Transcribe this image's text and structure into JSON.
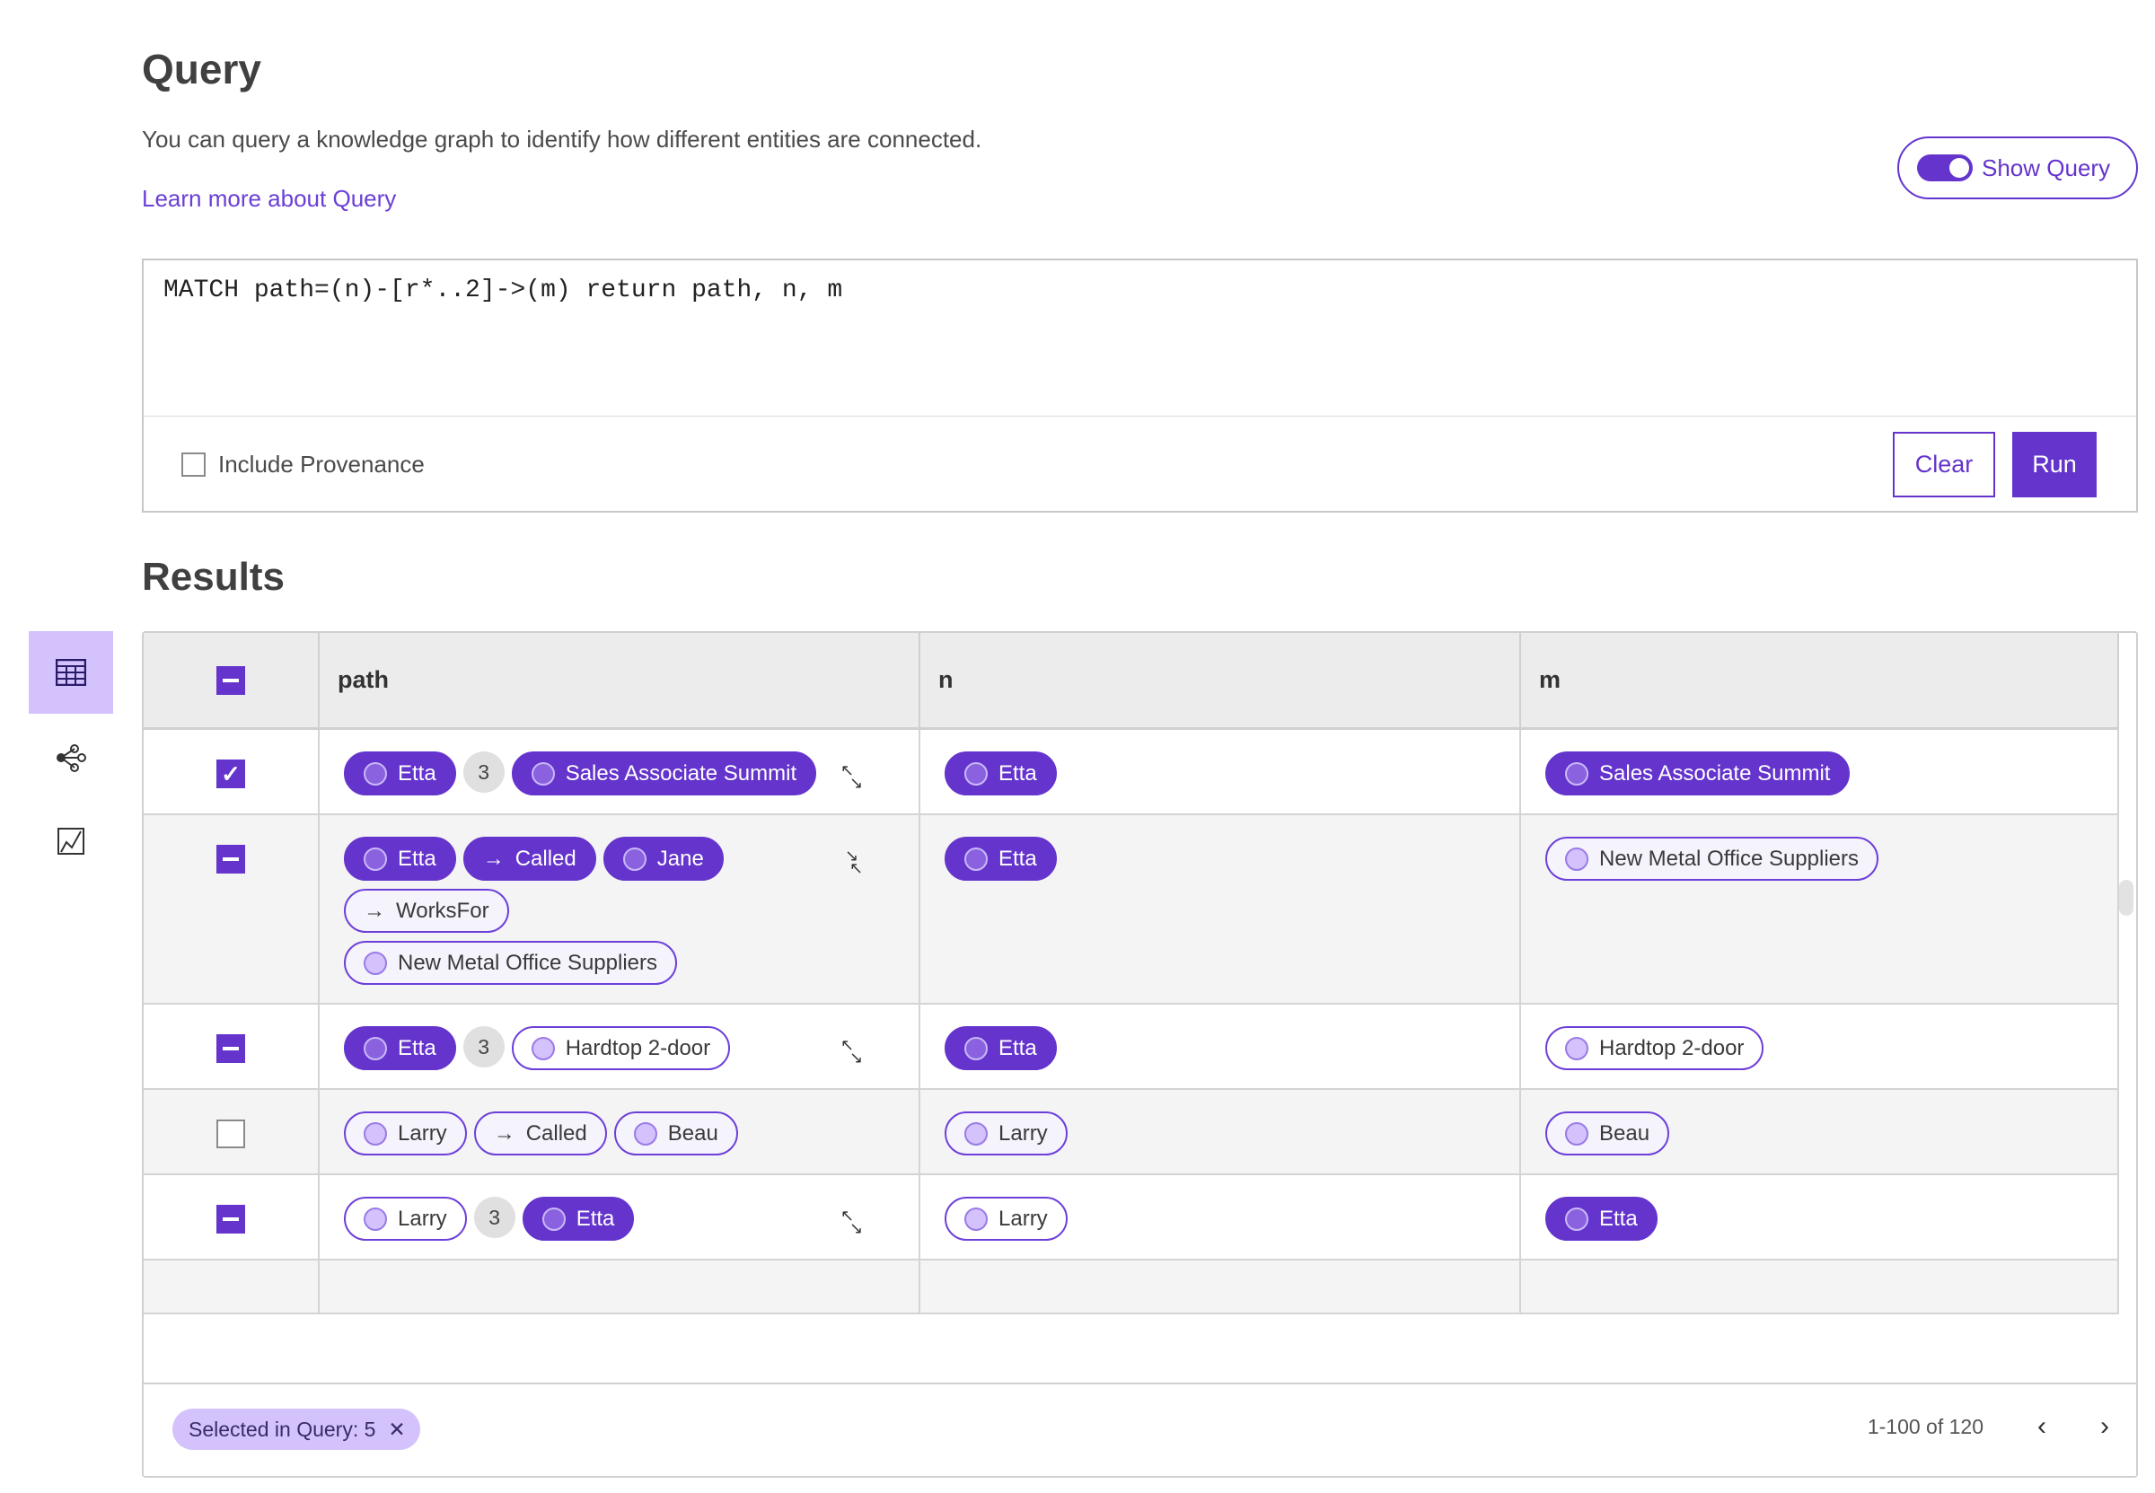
{
  "header": {
    "title": "Query",
    "description": "You can query a knowledge graph to identify how different entities are connected.",
    "learn_more": "Learn more about Query",
    "show_query_label": "Show Query",
    "show_query_on": true
  },
  "query": {
    "text": "MATCH path=(n)-[r*..2]->(m) return path, n, m",
    "include_provenance_label": "Include Provenance",
    "include_provenance": false,
    "clear_label": "Clear",
    "run_label": "Run"
  },
  "results": {
    "title": "Results",
    "views": [
      "table-icon",
      "graph-icon",
      "chart-icon"
    ],
    "columns": [
      "path",
      "n",
      "m"
    ],
    "rows": [
      {
        "state": "checked",
        "expand": "expand",
        "path": [
          {
            "t": "node",
            "s": "filled",
            "label": "Etta"
          },
          {
            "t": "count",
            "label": "3"
          },
          {
            "t": "node",
            "s": "filled",
            "label": "Sales Associate Summit"
          }
        ],
        "n": [
          {
            "t": "node",
            "s": "filled",
            "label": "Etta"
          }
        ],
        "m": [
          {
            "t": "node",
            "s": "filled",
            "label": "Sales Associate Summit"
          }
        ]
      },
      {
        "state": "mixed",
        "expand": "collapse",
        "path": [
          {
            "t": "node",
            "s": "filled",
            "label": "Etta"
          },
          {
            "t": "rel",
            "s": "filled",
            "label": "Called"
          },
          {
            "t": "node",
            "s": "filled",
            "label": "Jane"
          },
          {
            "t": "rel",
            "s": "outline",
            "label": "WorksFor"
          },
          {
            "t": "node",
            "s": "outline",
            "label": "New Metal Office Suppliers"
          }
        ],
        "n": [
          {
            "t": "node",
            "s": "filled",
            "label": "Etta"
          }
        ],
        "m": [
          {
            "t": "node",
            "s": "outline",
            "label": "New Metal Office Suppliers"
          }
        ]
      },
      {
        "state": "mixed",
        "expand": "expand",
        "path": [
          {
            "t": "node",
            "s": "filled",
            "label": "Etta"
          },
          {
            "t": "count",
            "label": "3"
          },
          {
            "t": "node",
            "s": "outline",
            "label": "Hardtop 2-door"
          }
        ],
        "n": [
          {
            "t": "node",
            "s": "filled",
            "label": "Etta"
          }
        ],
        "m": [
          {
            "t": "node",
            "s": "outline",
            "label": "Hardtop 2-door"
          }
        ]
      },
      {
        "state": "unchecked",
        "expand": "",
        "path": [
          {
            "t": "node",
            "s": "outline",
            "label": "Larry"
          },
          {
            "t": "rel",
            "s": "outline",
            "label": "Called"
          },
          {
            "t": "node",
            "s": "outline",
            "label": "Beau"
          }
        ],
        "n": [
          {
            "t": "node",
            "s": "outline",
            "label": "Larry"
          }
        ],
        "m": [
          {
            "t": "node",
            "s": "outline",
            "label": "Beau"
          }
        ]
      },
      {
        "state": "mixed",
        "expand": "expand",
        "path": [
          {
            "t": "node",
            "s": "outline",
            "label": "Larry"
          },
          {
            "t": "count",
            "label": "3"
          },
          {
            "t": "node",
            "s": "filled",
            "label": "Etta"
          }
        ],
        "n": [
          {
            "t": "node",
            "s": "outline",
            "label": "Larry"
          }
        ],
        "m": [
          {
            "t": "node",
            "s": "filled",
            "label": "Etta"
          }
        ]
      }
    ],
    "selected_label": "Selected in Query: 5",
    "pagination": "1-100 of 120"
  },
  "colors": {
    "accent": "#6434cc",
    "accent_light": "#d3c2fc",
    "header_bg": "#ececec"
  }
}
